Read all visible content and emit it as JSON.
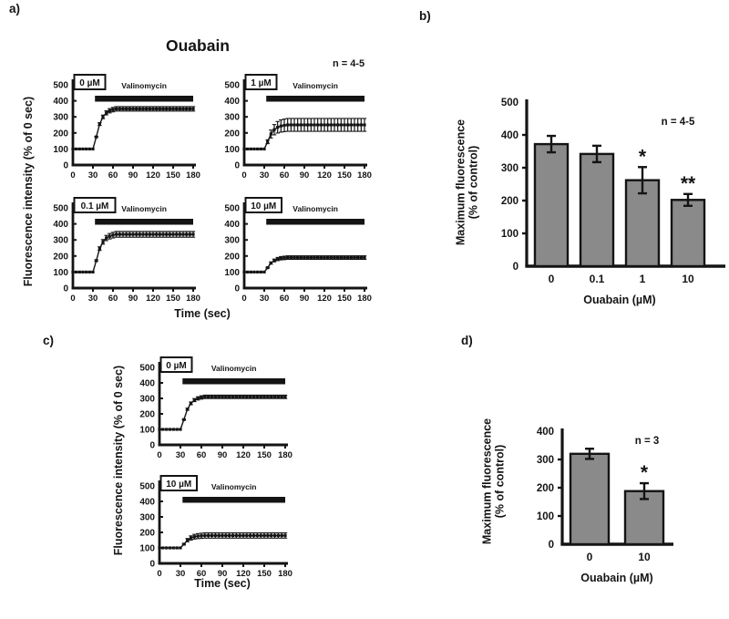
{
  "figure": {
    "panels": [
      {
        "letter": "a)"
      },
      {
        "letter": "b)"
      },
      {
        "letter": "c)"
      },
      {
        "letter": "d)"
      }
    ],
    "panel_a": {
      "title": "Ouabain",
      "n_label": "n = 4-5",
      "ylabel": "Fluorescence intensity (% of 0 sec)",
      "xlabel": "Time (sec)"
    },
    "panel_b": {
      "n_label": "n = 4-5",
      "ylabel": "Maximum fluorescence\n(% of control)",
      "xlabel": "Ouabain (µM)"
    },
    "panel_c": {
      "ylabel": "Fluorescence intensity (% of 0 sec)",
      "xlabel": "Time (sec)"
    },
    "panel_d": {
      "n_label": "n = 3",
      "ylabel": "Maximum fluorescence\n(% of control)",
      "xlabel": "Ouabain (µM)"
    }
  },
  "colors": {
    "bar_fill": "#8a8a8a",
    "ink": "#141414",
    "box_fill": "#ffffff"
  },
  "chart_data": [
    {
      "id": "a0",
      "panel": "a",
      "type": "line",
      "condition": "0 µM",
      "drug_bar": {
        "label": "Valinomycin",
        "x_start": 33,
        "x_end": 180
      },
      "xlabel": "Time (sec)",
      "ylabel": "Fluorescence intensity (% of 0 sec)",
      "xlim": [
        0,
        180
      ],
      "ylim": [
        0,
        500
      ],
      "xtick_step": 30,
      "ytick_step": 100,
      "x_start": 0,
      "x_step": 5,
      "max_err": 14,
      "y": [
        100,
        100,
        100,
        100,
        100,
        100,
        100,
        175,
        255,
        300,
        325,
        338,
        345,
        350,
        350,
        350,
        350,
        350,
        350,
        350,
        350,
        350,
        350,
        350,
        350,
        350,
        350,
        350,
        350,
        350,
        350,
        350,
        350,
        350,
        350,
        350,
        350
      ]
    },
    {
      "id": "a1",
      "panel": "a",
      "type": "line",
      "condition": "1 µM",
      "drug_bar": {
        "label": "Valinomycin",
        "x_start": 33,
        "x_end": 180
      },
      "xlabel": "Time (sec)",
      "ylabel": "Fluorescence intensity (% of 0 sec)",
      "xlim": [
        0,
        180
      ],
      "ylim": [
        0,
        500
      ],
      "xtick_step": 30,
      "ytick_step": 100,
      "x_start": 0,
      "x_step": 5,
      "max_err": 40,
      "y": [
        100,
        100,
        100,
        100,
        100,
        100,
        100,
        145,
        193,
        220,
        235,
        243,
        247,
        250,
        250,
        250,
        250,
        250,
        250,
        250,
        250,
        250,
        250,
        250,
        250,
        250,
        250,
        250,
        250,
        250,
        250,
        250,
        250,
        250,
        250,
        250,
        250
      ]
    },
    {
      "id": "a01",
      "panel": "a",
      "type": "line",
      "condition": "0.1 µM",
      "drug_bar": {
        "label": "Valinomycin",
        "x_start": 33,
        "x_end": 180
      },
      "xlabel": "Time (sec)",
      "ylabel": "Fluorescence intensity (% of 0 sec)",
      "xlim": [
        0,
        180
      ],
      "ylim": [
        0,
        500
      ],
      "xtick_step": 30,
      "ytick_step": 100,
      "x_start": 0,
      "x_step": 5,
      "max_err": 18,
      "y": [
        100,
        100,
        100,
        100,
        100,
        100,
        100,
        171,
        246,
        288,
        312,
        323,
        330,
        335,
        335,
        335,
        335,
        335,
        335,
        335,
        335,
        335,
        335,
        335,
        335,
        335,
        335,
        335,
        335,
        335,
        335,
        335,
        335,
        335,
        335,
        335,
        335
      ]
    },
    {
      "id": "a10",
      "panel": "a",
      "type": "line",
      "condition": "10 µM",
      "drug_bar": {
        "label": "Valinomycin",
        "x_start": 33,
        "x_end": 180
      },
      "xlabel": "Time (sec)",
      "ylabel": "Fluorescence intensity (% of 0 sec)",
      "xlim": [
        0,
        180
      ],
      "ylim": [
        0,
        500
      ],
      "xtick_step": 30,
      "ytick_step": 100,
      "x_start": 0,
      "x_step": 5,
      "max_err": 11,
      "y": [
        100,
        100,
        100,
        100,
        100,
        100,
        100,
        127,
        156,
        172,
        181,
        186,
        188,
        190,
        190,
        190,
        190,
        190,
        190,
        190,
        190,
        190,
        190,
        190,
        190,
        190,
        190,
        190,
        190,
        190,
        190,
        190,
        190,
        190,
        190,
        190,
        190
      ]
    },
    {
      "id": "c0",
      "panel": "c",
      "type": "line",
      "condition": "0 µM",
      "drug_bar": {
        "label": "Valinomycin",
        "x_start": 33,
        "x_end": 180
      },
      "xlabel": "Time (sec)",
      "ylabel": "Fluorescence intensity (% of 0 sec)",
      "xlim": [
        0,
        180
      ],
      "ylim": [
        0,
        500
      ],
      "xtick_step": 30,
      "ytick_step": 100,
      "x_start": 0,
      "x_step": 5,
      "max_err": 11,
      "y": [
        100,
        100,
        100,
        100,
        100,
        100,
        100,
        163,
        230,
        268,
        289,
        300,
        306,
        310,
        310,
        310,
        310,
        310,
        310,
        310,
        310,
        310,
        310,
        310,
        310,
        310,
        310,
        310,
        310,
        310,
        310,
        310,
        310,
        310,
        310,
        310,
        310
      ]
    },
    {
      "id": "c10",
      "panel": "c",
      "type": "line",
      "condition": "10 µM",
      "drug_bar": {
        "label": "Valinomycin",
        "x_start": 33,
        "x_end": 180
      },
      "xlabel": "Time (sec)",
      "ylabel": "Fluorescence intensity (% of 0 sec)",
      "xlim": [
        0,
        180
      ],
      "ylim": [
        0,
        500
      ],
      "xtick_step": 30,
      "ytick_step": 100,
      "x_start": 0,
      "x_step": 5,
      "max_err": 17,
      "y": [
        100,
        100,
        100,
        100,
        100,
        100,
        100,
        124,
        150,
        164,
        172,
        176,
        178,
        180,
        180,
        180,
        180,
        180,
        180,
        180,
        180,
        180,
        180,
        180,
        180,
        180,
        180,
        180,
        180,
        180,
        180,
        180,
        180,
        180,
        180,
        180,
        180
      ]
    },
    {
      "id": "b",
      "panel": "b",
      "type": "bar",
      "categories": [
        "0",
        "0.1",
        "1",
        "10"
      ],
      "values": [
        372,
        342,
        262,
        202
      ],
      "errors": [
        25,
        25,
        40,
        18
      ],
      "sig": [
        "",
        "",
        "*",
        "**"
      ],
      "n_label": "n = 4-5",
      "xlabel": "Ouabain (µM)",
      "ylabel": "Maximum fluorescence\n(% of control)",
      "ylim": [
        0,
        500
      ],
      "ytick_step": 100
    },
    {
      "id": "d",
      "panel": "d",
      "type": "bar",
      "categories": [
        "0",
        "10"
      ],
      "values": [
        320,
        188
      ],
      "errors": [
        18,
        28
      ],
      "sig": [
        "",
        "*"
      ],
      "n_label": "n = 3",
      "xlabel": "Ouabain (µM)",
      "ylabel": "Maximum fluorescence\n(% of control)",
      "ylim": [
        0,
        400
      ],
      "ytick_step": 100
    }
  ]
}
